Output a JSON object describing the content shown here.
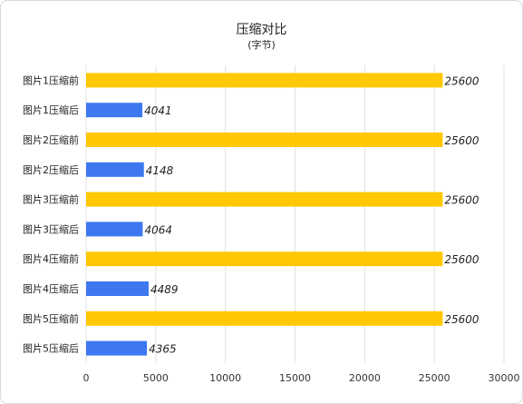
{
  "chart_data": {
    "type": "bar",
    "orientation": "horizontal",
    "title": "压缩对比",
    "subtitle": "(字节)",
    "categories": [
      "图片1压缩前",
      "图片1压缩后",
      "图片2压缩前",
      "图片2压缩后",
      "图片3压缩前",
      "图片3压缩后",
      "图片4压缩前",
      "图片4压缩后",
      "图片5压缩前",
      "图片5压缩后"
    ],
    "values": [
      25600,
      4041,
      25600,
      4148,
      25600,
      4064,
      25600,
      4489,
      25600,
      4365
    ],
    "bar_colors": [
      "#FFC800",
      "#3D78F0",
      "#FFC800",
      "#3D78F0",
      "#FFC800",
      "#3D78F0",
      "#FFC800",
      "#3D78F0",
      "#FFC800",
      "#3D78F0"
    ],
    "xlim": [
      0,
      30000
    ],
    "xticks": [
      0,
      5000,
      10000,
      15000,
      20000,
      25000,
      30000
    ],
    "grid": "vertical",
    "data_labels": true
  }
}
